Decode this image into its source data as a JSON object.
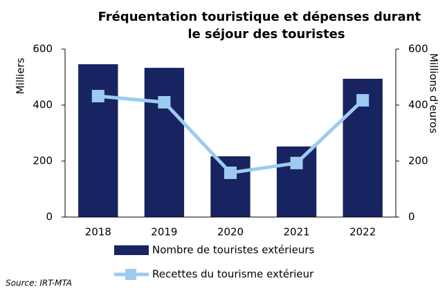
{
  "chart_data": {
    "type": "bar",
    "title": [
      "Fréquentation touristique et dépenses durant",
      "le séjour des touristes"
    ],
    "y_label": "Milliers",
    "y2_label": "Millions d'euros",
    "source": "Source: IRT-MTA",
    "categories": [
      "2018",
      "2019",
      "2020",
      "2021",
      "2022"
    ],
    "series": [
      {
        "name": "Nombre de touristes extérieurs",
        "type": "bar",
        "color": "#172461",
        "values": [
          546,
          533,
          217,
          252,
          494
        ]
      },
      {
        "name": "Recettes du tourisme extérieur",
        "type": "line",
        "axis": "y2",
        "color": "#9dcbef",
        "values": [
          432,
          410,
          158,
          193,
          417
        ]
      }
    ],
    "ylim": [
      0,
      600
    ],
    "yticks": [
      0,
      200,
      400,
      600
    ],
    "y2lim": [
      0,
      600
    ],
    "y2ticks": [
      0,
      200,
      400,
      600
    ],
    "grid": false
  }
}
